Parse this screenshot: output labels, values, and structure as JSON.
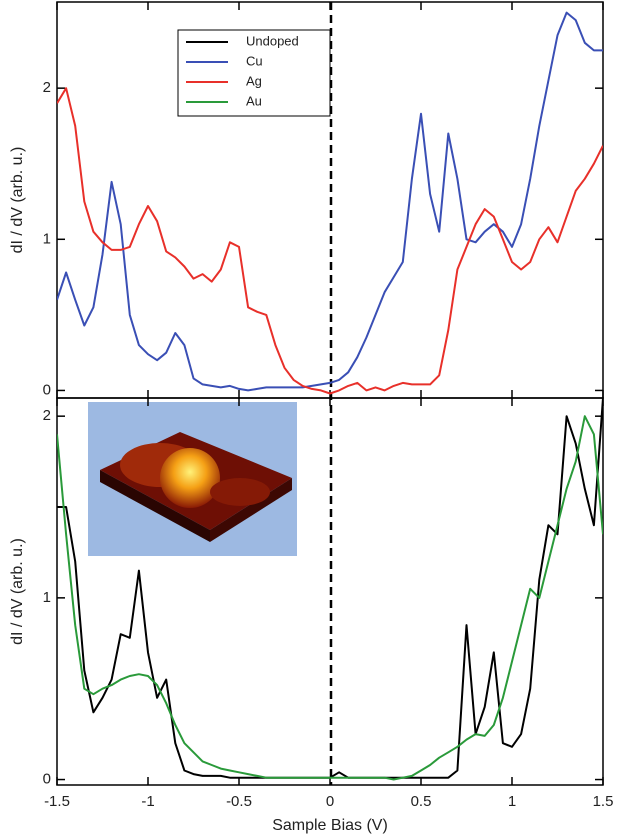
{
  "chart_data": [
    {
      "type": "line",
      "ylabel": "dI / dV (arb. u.)",
      "x": [
        -1.5,
        -1.45,
        -1.4,
        -1.35,
        -1.3,
        -1.25,
        -1.2,
        -1.15,
        -1.1,
        -1.05,
        -1.0,
        -0.95,
        -0.9,
        -0.85,
        -0.8,
        -0.75,
        -0.7,
        -0.65,
        -0.6,
        -0.55,
        -0.5,
        -0.45,
        -0.4,
        -0.35,
        -0.3,
        -0.25,
        -0.2,
        -0.15,
        -0.1,
        -0.05,
        0,
        0.05,
        0.1,
        0.15,
        0.2,
        0.25,
        0.3,
        0.35,
        0.4,
        0.45,
        0.5,
        0.55,
        0.6,
        0.65,
        0.7,
        0.75,
        0.8,
        0.85,
        0.9,
        0.95,
        1.0,
        1.05,
        1.1,
        1.15,
        1.2,
        1.25,
        1.3,
        1.35,
        1.4,
        1.45,
        1.5
      ],
      "series": [
        {
          "name": "Cu",
          "color": "#3a4fb5",
          "values": [
            0.6,
            0.78,
            0.6,
            0.43,
            0.55,
            0.9,
            1.38,
            1.1,
            0.5,
            0.3,
            0.24,
            0.2,
            0.25,
            0.38,
            0.3,
            0.08,
            0.04,
            0.03,
            0.02,
            0.03,
            0.01,
            0.0,
            0.01,
            0.02,
            0.02,
            0.02,
            0.02,
            0.02,
            0.03,
            0.04,
            0.05,
            0.07,
            0.12,
            0.22,
            0.35,
            0.5,
            0.65,
            0.75,
            0.85,
            1.4,
            1.83,
            1.3,
            1.05,
            1.7,
            1.4,
            1.0,
            0.98,
            1.05,
            1.1,
            1.05,
            0.95,
            1.1,
            1.4,
            1.75,
            2.05,
            2.35,
            2.5,
            2.45,
            2.3,
            2.25,
            2.25
          ]
        },
        {
          "name": "Ag",
          "color": "#e8302a",
          "values": [
            1.9,
            2.0,
            1.75,
            1.25,
            1.05,
            0.98,
            0.93,
            0.93,
            0.95,
            1.1,
            1.22,
            1.12,
            0.92,
            0.88,
            0.82,
            0.74,
            0.77,
            0.72,
            0.8,
            0.98,
            0.95,
            0.55,
            0.52,
            0.5,
            0.3,
            0.15,
            0.07,
            0.03,
            0.01,
            0.0,
            -0.02,
            0.0,
            0.03,
            0.05,
            0.0,
            0.02,
            0.0,
            0.03,
            0.05,
            0.04,
            0.04,
            0.04,
            0.1,
            0.4,
            0.8,
            0.95,
            1.1,
            1.2,
            1.15,
            1.0,
            0.85,
            0.8,
            0.85,
            1.0,
            1.08,
            0.98,
            1.15,
            1.32,
            1.4,
            1.5,
            1.62
          ]
        }
      ],
      "xlim": [
        -1.5,
        1.5
      ],
      "ylim": [
        -0.05,
        2.57
      ],
      "yticks": [
        0,
        1,
        2
      ]
    },
    {
      "type": "line",
      "ylabel": "dI / dV (arb. u.)",
      "xlabel": "Sample Bias (V)",
      "x": [
        -1.5,
        -1.45,
        -1.4,
        -1.35,
        -1.3,
        -1.25,
        -1.2,
        -1.15,
        -1.1,
        -1.05,
        -1.0,
        -0.95,
        -0.9,
        -0.85,
        -0.8,
        -0.75,
        -0.7,
        -0.65,
        -0.6,
        -0.55,
        -0.5,
        -0.45,
        -0.4,
        -0.35,
        -0.3,
        -0.25,
        -0.2,
        -0.15,
        -0.1,
        -0.05,
        0,
        0.05,
        0.1,
        0.15,
        0.2,
        0.25,
        0.3,
        0.35,
        0.4,
        0.45,
        0.5,
        0.55,
        0.6,
        0.65,
        0.7,
        0.75,
        0.8,
        0.85,
        0.9,
        0.95,
        1.0,
        1.05,
        1.1,
        1.15,
        1.2,
        1.25,
        1.3,
        1.35,
        1.4,
        1.45,
        1.5
      ],
      "series": [
        {
          "name": "Undoped",
          "color": "#000000",
          "values": [
            1.5,
            1.5,
            1.2,
            0.6,
            0.37,
            0.45,
            0.55,
            0.8,
            0.78,
            1.15,
            0.7,
            0.45,
            0.55,
            0.2,
            0.05,
            0.03,
            0.02,
            0.02,
            0.02,
            0.01,
            0.01,
            0.01,
            0.01,
            0.01,
            0.01,
            0.01,
            0.01,
            0.01,
            0.01,
            0.01,
            0.01,
            0.04,
            0.01,
            0.01,
            0.01,
            0.01,
            0.01,
            0.01,
            0.01,
            0.01,
            0.01,
            0.01,
            0.01,
            0.01,
            0.05,
            0.85,
            0.25,
            0.4,
            0.7,
            0.2,
            0.18,
            0.25,
            0.5,
            1.1,
            1.4,
            1.35,
            2.0,
            1.85,
            1.6,
            1.4,
            2.1
          ]
        },
        {
          "name": "Au",
          "color": "#2a9a3a",
          "values": [
            1.9,
            1.35,
            0.85,
            0.5,
            0.47,
            0.5,
            0.52,
            0.55,
            0.57,
            0.58,
            0.57,
            0.52,
            0.42,
            0.3,
            0.2,
            0.15,
            0.1,
            0.08,
            0.06,
            0.05,
            0.04,
            0.03,
            0.02,
            0.01,
            0.01,
            0.01,
            0.01,
            0.01,
            0.01,
            0.01,
            0.01,
            0.01,
            0.01,
            0.01,
            0.01,
            0.01,
            0.01,
            0.0,
            0.01,
            0.02,
            0.05,
            0.08,
            0.12,
            0.15,
            0.18,
            0.22,
            0.25,
            0.24,
            0.3,
            0.45,
            0.65,
            0.85,
            1.05,
            1.0,
            1.2,
            1.4,
            1.6,
            1.75,
            2.0,
            1.9,
            1.35
          ]
        }
      ],
      "xlim": [
        -1.5,
        1.5
      ],
      "ylim": [
        -0.03,
        2.1
      ],
      "xticks": [
        -1.5,
        -1,
        -0.5,
        0,
        0.5,
        1,
        1.5
      ],
      "yticks": [
        0,
        1,
        2
      ]
    }
  ]
}
